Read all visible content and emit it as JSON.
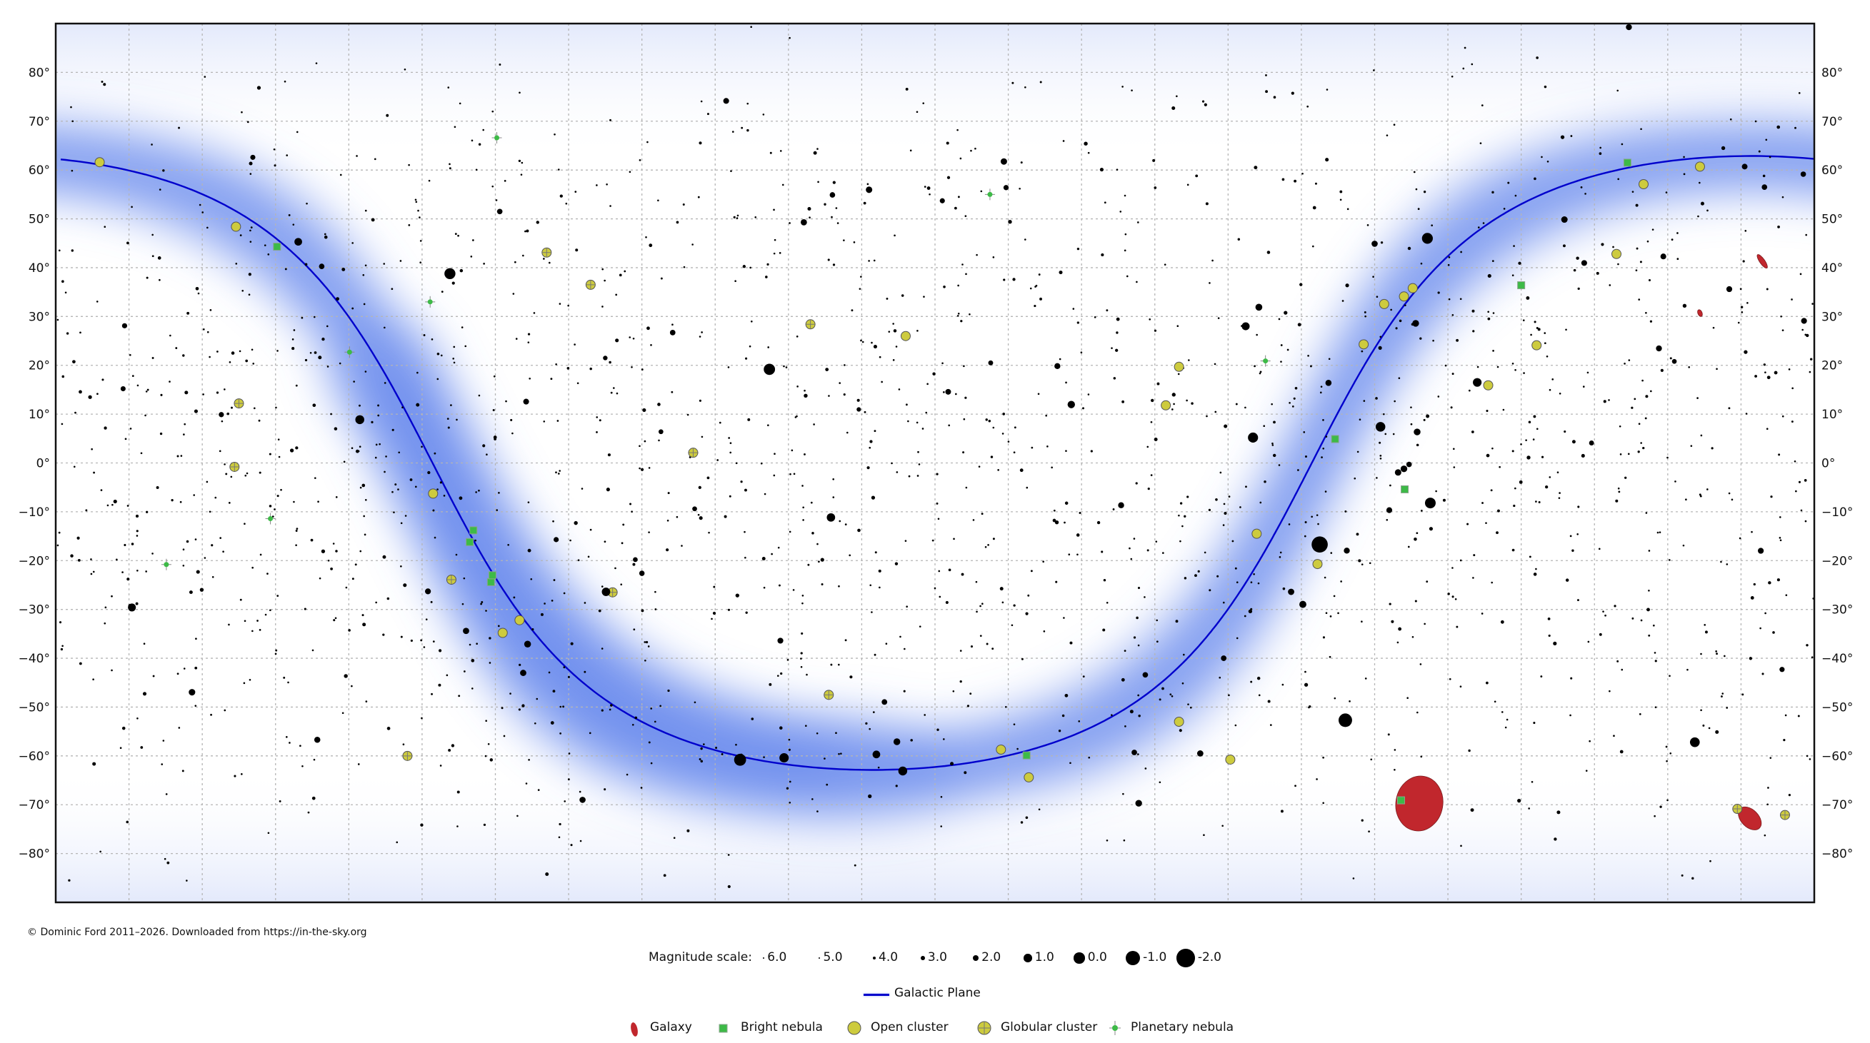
{
  "copyright": "© Dominic Ford 2011–2026. Downloaded from https://in-the-sky.org",
  "colors": {
    "galaxy": "#c1272d",
    "bright_nebula": "#3dba47",
    "open_cluster": "#cdcb3e",
    "planetary_nebula": "#3dba47",
    "galactic_plane": "#0000cc",
    "milky_way": "#6f8fee",
    "grid": "#b5b5b5"
  },
  "legend": {
    "magnitude_label": "Magnitude scale:",
    "magnitudes": [
      {
        "mag": 6,
        "label": "6.0"
      },
      {
        "mag": 5,
        "label": "5.0"
      },
      {
        "mag": 4,
        "label": "4.0"
      },
      {
        "mag": 3,
        "label": "3.0"
      },
      {
        "mag": 2,
        "label": "2.0"
      },
      {
        "mag": 1,
        "label": "1.0"
      },
      {
        "mag": 0,
        "label": "0.0"
      },
      {
        "mag": -1,
        "label": "-1.0"
      },
      {
        "mag": -2,
        "label": "-2.0"
      }
    ],
    "galactic_plane": "Galactic Plane",
    "objects": {
      "galaxy": "Galaxy",
      "bright_nebula": "Bright nebula",
      "open_cluster": "Open cluster",
      "globular_cluster": "Globular cluster",
      "planetary_nebula": "Planetary nebula"
    }
  },
  "chart_data": {
    "type": "scatter",
    "projection": "equirectangular",
    "x_axis": "right ascension (hours), 24h at left to 0h at right",
    "ra_range": [
      24,
      0
    ],
    "dec_range": [
      -90,
      90
    ],
    "grid": true,
    "ra_grid_step_hours": 1,
    "dec_grid_step_deg": 10,
    "dec_tick_labels": [
      "80°",
      "70°",
      "60°",
      "50°",
      "40°",
      "30°",
      "20°",
      "10°",
      "0°",
      "−10°",
      "−20°",
      "−30°",
      "−40°",
      "−50°",
      "−60°",
      "−70°",
      "−80°"
    ],
    "dec_ticks": [
      80,
      70,
      60,
      50,
      40,
      30,
      20,
      10,
      0,
      -10,
      -20,
      -30,
      -40,
      -50,
      -60,
      -70,
      -80
    ],
    "stars_ra_dec_mag": [
      [
        6.75,
        -16.7,
        -1.46
      ],
      [
        6.4,
        -52.7,
        -0.74
      ],
      [
        14.26,
        19.18,
        -0.05
      ],
      [
        14.66,
        -60.8,
        -0.27
      ],
      [
        18.62,
        38.78,
        0.03
      ],
      [
        5.28,
        46.0,
        0.08
      ],
      [
        5.24,
        -8.2,
        0.13
      ],
      [
        7.66,
        5.2,
        0.34
      ],
      [
        1.63,
        -57.2,
        0.46
      ],
      [
        5.92,
        7.4,
        0.5
      ],
      [
        14.06,
        -60.4,
        0.61
      ],
      [
        19.85,
        8.87,
        0.76
      ],
      [
        12.44,
        -63.1,
        0.77
      ],
      [
        4.6,
        16.5,
        0.85
      ],
      [
        16.49,
        -26.4,
        0.96
      ],
      [
        13.42,
        -11.16,
        0.97
      ],
      [
        7.76,
        28.0,
        1.14
      ],
      [
        22.96,
        -29.6,
        1.16
      ],
      [
        20.69,
        45.3,
        1.25
      ],
      [
        12.8,
        -59.7,
        1.25
      ],
      [
        10.14,
        11.97,
        1.35
      ],
      [
        6.98,
        -28.97,
        1.5
      ],
      [
        7.58,
        31.9,
        1.58
      ],
      [
        17.56,
        -37.1,
        1.62
      ],
      [
        12.52,
        -57.1,
        1.63
      ],
      [
        5.42,
        6.35,
        1.64
      ],
      [
        5.44,
        28.6,
        1.65
      ],
      [
        9.22,
        -69.7,
        1.67
      ],
      [
        5.6,
        -1.2,
        1.69
      ],
      [
        22.14,
        -46.96,
        1.74
      ],
      [
        5.68,
        -1.94,
        1.77
      ],
      [
        12.9,
        55.96,
        1.77
      ],
      [
        11.06,
        61.75,
        1.79
      ],
      [
        3.41,
        49.86,
        1.79
      ],
      [
        7.14,
        -26.4,
        1.83
      ],
      [
        17.62,
        -43.0,
        1.86
      ],
      [
        18.4,
        -34.4,
        1.85
      ],
      [
        8.38,
        -59.5,
        1.86
      ],
      [
        13.79,
        49.3,
        1.86
      ],
      [
        6.0,
        44.9,
        1.9
      ],
      [
        16.81,
        -69.0,
        1.91
      ],
      [
        6.63,
        16.4,
        1.92
      ],
      [
        20.43,
        -56.7,
        1.94
      ],
      [
        2.53,
        89.26,
        1.98
      ],
      [
        6.38,
        -17.96,
        1.98
      ],
      [
        9.46,
        -8.66,
        1.98
      ],
      [
        2.12,
        23.46,
        2.0
      ],
      [
        10.33,
        19.84,
        2.0
      ],
      [
        0.73,
        -17.99,
        2.04
      ],
      [
        18.92,
        -26.3,
        2.05
      ],
      [
        14.11,
        -36.4,
        2.06
      ],
      [
        0.14,
        29.1,
        2.06
      ],
      [
        1.16,
        35.6,
        2.05
      ],
      [
        5.8,
        -9.67,
        2.06
      ],
      [
        14.85,
        74.16,
        2.08
      ],
      [
        17.58,
        12.56,
        2.08
      ],
      [
        3.14,
        40.96,
        2.1
      ],
      [
        2.06,
        42.3,
        2.1
      ],
      [
        11.82,
        14.57,
        2.14
      ],
      [
        0.95,
        60.7,
        2.15
      ],
      [
        12.69,
        -48.96,
        2.2
      ],
      [
        8.06,
        -40.0,
        2.21
      ],
      [
        9.28,
        -59.3,
        2.21
      ],
      [
        15.58,
        26.7,
        2.23
      ],
      [
        9.13,
        -43.4,
        2.23
      ],
      [
        13.4,
        54.9,
        2.23
      ],
      [
        20.37,
        40.26,
        2.23
      ],
      [
        0.68,
        56.5,
        2.24
      ],
      [
        17.94,
        51.5,
        2.24
      ],
      [
        5.53,
        -0.3,
        2.25
      ],
      [
        0.15,
        59.15,
        2.28
      ],
      [
        16.0,
        -22.6,
        2.29
      ],
      [
        11.03,
        56.4,
        2.37
      ],
      [
        21.74,
        9.9,
        2.39
      ],
      [
        0.44,
        -42.3,
        2.4
      ],
      [
        11.9,
        53.7,
        2.44
      ],
      [
        17.17,
        -15.7,
        2.43
      ],
      [
        23.06,
        28.1,
        2.42
      ],
      [
        21.31,
        62.6,
        2.45
      ],
      [
        23.08,
        15.2,
        2.48
      ],
      [
        3.04,
        4.09,
        2.53
      ],
      [
        11.24,
        20.5,
        2.56
      ],
      [
        16.09,
        -19.8,
        2.62
      ],
      [
        15.74,
        6.4,
        2.63
      ],
      [
        1.91,
        20.8,
        2.64
      ],
      [
        15.28,
        -9.4,
        2.61
      ],
      [
        16.5,
        21.5,
        2.77
      ],
      [
        13.04,
        10.96,
        2.83
      ]
    ],
    "galaxies_ra_dec_major_minor_arcmin_pa": [
      [
        5.39,
        -69.75,
        645,
        550,
        170
      ],
      [
        0.88,
        -72.8,
        320,
        205,
        45
      ],
      [
        0.71,
        41.3,
        190,
        60,
        35
      ],
      [
        1.56,
        30.7,
        70,
        40,
        23
      ]
    ],
    "open_clusters_ra_dec": [
      [
        3.79,
        24.1
      ],
      [
        4.45,
        15.9
      ],
      [
        8.67,
        19.7
      ],
      [
        2.33,
        57.1
      ],
      [
        17.9,
        -34.8
      ],
      [
        17.67,
        -32.2
      ],
      [
        10.72,
        -64.4
      ],
      [
        11.1,
        -58.7
      ],
      [
        7.61,
        -14.5
      ],
      [
        6.78,
        -20.7
      ],
      [
        6.15,
        24.3
      ],
      [
        5.6,
        34.1
      ],
      [
        5.87,
        32.55
      ],
      [
        5.48,
        35.8
      ],
      [
        18.85,
        -6.27
      ],
      [
        21.54,
        48.4
      ],
      [
        7.97,
        -60.75
      ],
      [
        8.67,
        -53.0
      ],
      [
        23.4,
        61.6
      ],
      [
        1.56,
        60.7
      ],
      [
        8.85,
        11.8
      ],
      [
        12.4,
        26.0
      ],
      [
        2.7,
        42.8
      ]
    ],
    "globular_clusters_ra_dec": [
      [
        13.45,
        -47.5
      ],
      [
        0.4,
        -72.1
      ],
      [
        16.7,
        36.5
      ],
      [
        18.6,
        -23.9
      ],
      [
        16.4,
        -26.5
      ],
      [
        15.3,
        2.1
      ],
      [
        13.7,
        28.4
      ],
      [
        21.5,
        12.2
      ],
      [
        21.56,
        -0.8
      ],
      [
        17.3,
        43.1
      ],
      [
        19.2,
        -60.0
      ],
      [
        1.05,
        -70.85
      ]
    ],
    "bright_nebulae_ra_dec": [
      [
        5.59,
        -5.4
      ],
      [
        18.06,
        -24.4
      ],
      [
        10.75,
        -59.9
      ],
      [
        20.98,
        44.3
      ],
      [
        18.35,
        -16.2
      ],
      [
        18.3,
        -13.8
      ],
      [
        6.54,
        4.9
      ],
      [
        4.0,
        36.4
      ],
      [
        5.64,
        -69.1
      ],
      [
        2.55,
        61.5
      ],
      [
        18.04,
        -23.0
      ]
    ],
    "planetary_nebulae_ra_dec": [
      [
        18.89,
        33.0
      ],
      [
        19.99,
        22.7
      ],
      [
        22.49,
        -20.8
      ],
      [
        11.25,
        55.0
      ],
      [
        17.98,
        66.6
      ],
      [
        21.07,
        -11.4
      ],
      [
        7.49,
        20.9
      ]
    ]
  }
}
